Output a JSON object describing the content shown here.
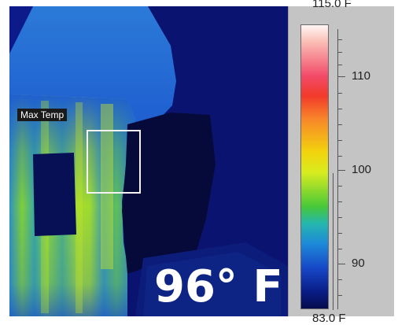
{
  "overlay": {
    "max_label": "Max Temp",
    "reading": "96° F"
  },
  "scale": {
    "top_value": "115.0 F",
    "bottom_value": "83.0 F",
    "labels": [
      "110",
      "100",
      "90"
    ],
    "colors": [
      "#fff6f4",
      "#f24a68",
      "#f23a2a",
      "#f8862a",
      "#f2d40c",
      "#48c838",
      "#1e8ad8",
      "#0a1d86"
    ]
  }
}
